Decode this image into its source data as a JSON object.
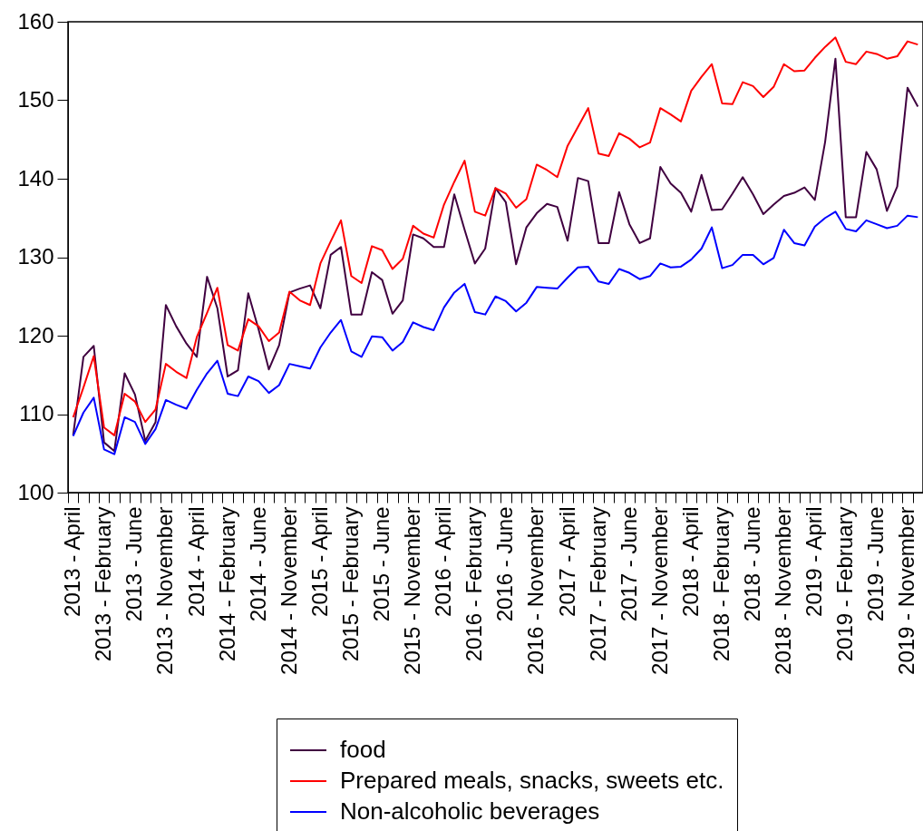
{
  "chart_data": {
    "type": "line",
    "categories": [
      "2013 - April",
      null,
      null,
      "2013 - February",
      null,
      null,
      "2013 - June",
      null,
      null,
      "2013 - November",
      null,
      null,
      "2014 - April",
      null,
      null,
      "2014 - February",
      null,
      null,
      "2014 - June",
      null,
      null,
      "2014 - November",
      null,
      null,
      "2015 - April",
      null,
      null,
      "2015 - February",
      null,
      null,
      "2015 - June",
      null,
      null,
      "2015 - November",
      null,
      null,
      "2016 - April",
      null,
      null,
      "2016 - February",
      null,
      null,
      "2016 - June",
      null,
      null,
      "2016 - November",
      null,
      null,
      "2017 - April",
      null,
      null,
      "2017 - February",
      null,
      null,
      "2017 - June",
      null,
      null,
      "2017 - November",
      null,
      null,
      "2018 - April",
      null,
      null,
      "2018 - February",
      null,
      null,
      "2018 - June",
      null,
      null,
      "2018 - November",
      null,
      null,
      "2019 - April",
      null,
      null,
      "2019 - February",
      null,
      null,
      "2019 - June",
      null,
      null,
      "2019 - November",
      null
    ],
    "series": [
      {
        "name": "food",
        "color": "#400040",
        "values": [
          107.3,
          117.3,
          118.7,
          106.4,
          105.3,
          115.2,
          112.5,
          106.6,
          109.0,
          123.9,
          121.2,
          119.0,
          117.3,
          127.5,
          123.5,
          114.8,
          115.6,
          125.4,
          120.8,
          115.7,
          118.8,
          125.5,
          126.0,
          126.4,
          123.5,
          130.3,
          131.3,
          122.7,
          122.7,
          128.1,
          127.1,
          122.8,
          124.5,
          132.9,
          132.4,
          131.3,
          131.3,
          138.0,
          133.5,
          129.2,
          131.1,
          138.8,
          137.0,
          129.1,
          133.8,
          135.6,
          136.8,
          136.4,
          132.1,
          140.1,
          139.7,
          131.8,
          131.8,
          138.3,
          134.2,
          131.8,
          132.4,
          141.5,
          139.4,
          138.2,
          135.8,
          140.5,
          136.0,
          136.1,
          138.1,
          140.2,
          138.0,
          135.5,
          136.7,
          137.8,
          138.2,
          138.9,
          137.3,
          144.7,
          155.3,
          135.1,
          135.1,
          143.4,
          141.2,
          135.9,
          139.0,
          151.6,
          149.2
        ]
      },
      {
        "name": "Prepared meals, snacks, sweets etc.",
        "color": "#ff0000",
        "values": [
          109.6,
          113.4,
          117.4,
          108.3,
          107.3,
          112.6,
          111.6,
          109.0,
          110.6,
          116.4,
          115.4,
          114.6,
          119.8,
          122.9,
          126.1,
          118.8,
          118.1,
          122.1,
          121.2,
          119.3,
          120.4,
          125.6,
          124.5,
          123.9,
          129.2,
          132.0,
          134.7,
          127.6,
          126.7,
          131.4,
          130.9,
          128.5,
          129.8,
          134.0,
          133.0,
          132.5,
          136.7,
          139.6,
          142.3,
          135.8,
          135.3,
          138.8,
          138.1,
          136.3,
          137.4,
          141.8,
          141.1,
          140.2,
          144.2,
          146.6,
          149.0,
          143.2,
          142.9,
          145.8,
          145.1,
          144.0,
          144.6,
          149.0,
          148.2,
          147.3,
          151.2,
          153.0,
          154.6,
          149.6,
          149.5,
          152.3,
          151.8,
          150.4,
          151.7,
          154.6,
          153.7,
          153.8,
          155.4,
          156.8,
          158.0,
          154.9,
          154.6,
          156.2,
          155.9,
          155.3,
          155.6,
          157.5,
          157.1
        ]
      },
      {
        "name": "Non-alcoholic beverages",
        "color": "#0000ff",
        "values": [
          107.2,
          110.2,
          112.1,
          105.5,
          104.9,
          109.6,
          109.0,
          106.2,
          108.1,
          111.8,
          111.2,
          110.7,
          113.1,
          115.2,
          116.8,
          112.6,
          112.3,
          114.8,
          114.2,
          112.7,
          113.7,
          116.4,
          116.1,
          115.8,
          118.5,
          120.4,
          122.0,
          118.0,
          117.3,
          119.9,
          119.8,
          118.1,
          119.2,
          121.7,
          121.1,
          120.7,
          123.6,
          125.5,
          126.6,
          123.0,
          122.7,
          125.0,
          124.4,
          123.1,
          124.2,
          126.2,
          126.1,
          126.0,
          127.4,
          128.7,
          128.8,
          126.9,
          126.6,
          128.5,
          128.0,
          127.2,
          127.6,
          129.2,
          128.7,
          128.8,
          129.7,
          131.1,
          133.8,
          128.6,
          129.0,
          130.3,
          130.3,
          129.1,
          129.9,
          133.5,
          131.8,
          131.5,
          133.9,
          135.0,
          135.8,
          133.6,
          133.3,
          134.7,
          134.2,
          133.7,
          134.0,
          135.3,
          135.1
        ]
      }
    ],
    "ylim": [
      100,
      160
    ],
    "yticks": [
      100,
      110,
      120,
      130,
      140,
      150,
      160
    ],
    "grid": false,
    "legend": "bottom"
  }
}
